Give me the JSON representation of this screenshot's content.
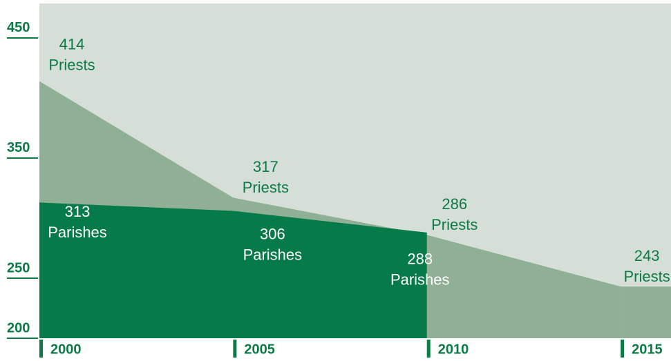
{
  "chart_data": {
    "type": "area",
    "x": [
      2000,
      2005,
      2010,
      2015
    ],
    "xlim": [
      2000,
      2016.3
    ],
    "xticks": [
      2000,
      2005,
      2010,
      2015
    ],
    "ylim": [
      200,
      478.7
    ],
    "yticks": [
      200,
      250,
      350,
      450
    ],
    "background": "#d6dfd7",
    "series": [
      {
        "name": "Priests",
        "color": "#8fb095",
        "label_color": "#0b7a45",
        "values": [
          414,
          317,
          286,
          243
        ]
      },
      {
        "name": "Parishes",
        "color": "#067a48",
        "label_color": "#ffffff",
        "values": [
          313,
          306,
          288,
          null
        ]
      }
    ]
  }
}
